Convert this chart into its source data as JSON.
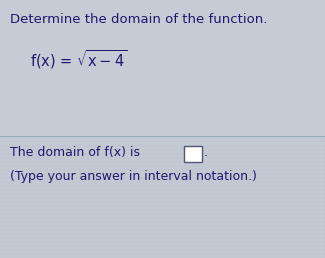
{
  "title": "Determine the domain of the function.",
  "line1": "The domain of f(x) is",
  "line2": "(Type your answer in interval notation.)",
  "bg_color": "#c8cdd6",
  "bg_color2": "#b8c2cc",
  "text_color": "#1a1a6e",
  "divider_color": "#9aaabb",
  "title_fontsize": 9.5,
  "body_fontsize": 9.0,
  "func_fontsize": 10.5,
  "box_edge_color": "#555577"
}
